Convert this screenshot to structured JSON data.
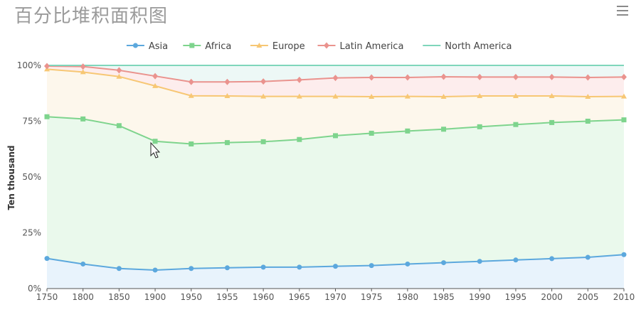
{
  "title": "百分比堆积面积图",
  "chart_data": {
    "type": "area",
    "stacked": true,
    "percent": true,
    "categories": [
      "1750",
      "1800",
      "1850",
      "1900",
      "1950",
      "1955",
      "1960",
      "1965",
      "1970",
      "1975",
      "1980",
      "1985",
      "1990",
      "1995",
      "2000",
      "2005",
      "2010"
    ],
    "series": [
      {
        "name": "Asia",
        "color": "#5ca8dd",
        "fill": "#e8f3fc",
        "marker": "circle",
        "values": [
          13.5,
          11,
          9,
          8.3,
          9,
          9.3,
          9.6,
          9.6,
          10,
          10.3,
          11,
          11.6,
          12.2,
          12.8,
          13.4,
          14,
          15.2
        ]
      },
      {
        "name": "Africa",
        "color": "#7ed48d",
        "fill": "#eaf9ec",
        "marker": "square",
        "values": [
          63.5,
          65,
          64,
          57.7,
          55.8,
          56.1,
          56.2,
          57.2,
          58.5,
          59.3,
          59.6,
          59.8,
          60.3,
          60.7,
          61,
          61,
          60.4
        ]
      },
      {
        "name": "Europe",
        "color": "#f7c774",
        "fill": "#fdf7ec",
        "marker": "triangle",
        "values": [
          21.3,
          21,
          22,
          24.8,
          21.6,
          20.9,
          20.3,
          19.3,
          17.6,
          16.4,
          15.5,
          14.6,
          13.8,
          12.8,
          11.9,
          11,
          10.5
        ]
      },
      {
        "name": "Latin America",
        "color": "#ea938e",
        "fill": "#fdeded",
        "marker": "diamond",
        "values": [
          1.4,
          2.5,
          2.8,
          4.4,
          6.2,
          6.3,
          6.7,
          7.4,
          8.3,
          8.6,
          8.5,
          8.9,
          8.5,
          8.5,
          8.5,
          8.6,
          8.7
        ]
      },
      {
        "name": "North America",
        "color": "#7fd6bb",
        "fill": "#edf8f6",
        "marker": "none",
        "values": [
          0.3,
          0.5,
          2.2,
          4.8,
          7.4,
          7.4,
          7.2,
          6.5,
          5.6,
          5.4,
          5.4,
          5.1,
          5.2,
          5.2,
          5.2,
          5.4,
          5.2
        ]
      }
    ],
    "ylabel": "Ten thousand",
    "yticks": [
      "0%",
      "25%",
      "50%",
      "75%",
      "100%"
    ],
    "ylim": [
      0,
      100
    ],
    "legend": "top-center",
    "grid": true
  }
}
